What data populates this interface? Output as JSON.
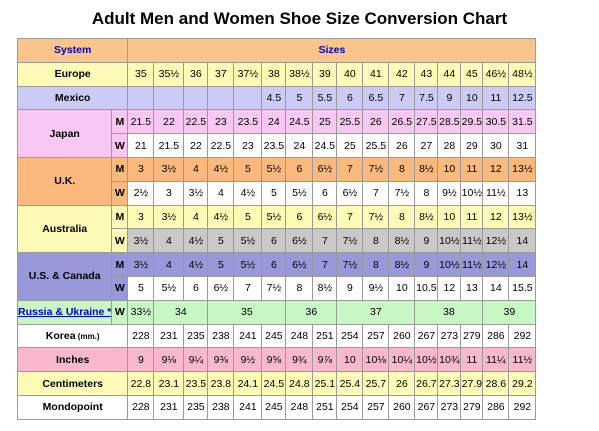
{
  "title": "Adult Men and Women Shoe Size Conversion Chart",
  "header": {
    "system": "System",
    "sizes": "Sizes"
  },
  "europe": {
    "label": "Europe",
    "values": [
      "35",
      "35½",
      "36",
      "37",
      "37½",
      "38",
      "38½",
      "39",
      "40",
      "41",
      "42",
      "43",
      "44",
      "45",
      "46½",
      "48½"
    ]
  },
  "mexico": {
    "label": "Mexico",
    "values": [
      "4.5",
      "5",
      "5.5",
      "6",
      "6.5",
      "7",
      "7.5",
      "9",
      "10",
      "11",
      "12.5"
    ]
  },
  "japan": {
    "label": "Japan",
    "m": {
      "tag": "M",
      "values": [
        "21.5",
        "22",
        "22.5",
        "23",
        "23.5",
        "24",
        "24.5",
        "25",
        "25.5",
        "26",
        "26.5",
        "27.5",
        "28.5",
        "29.5",
        "30.5",
        "31.5"
      ]
    },
    "w": {
      "tag": "W",
      "values": [
        "21",
        "21.5",
        "22",
        "22.5",
        "23",
        "23.5",
        "24",
        "24.5",
        "25",
        "25.5",
        "26",
        "27",
        "28",
        "29",
        "30",
        "31"
      ]
    }
  },
  "uk": {
    "label": "U.K.",
    "m": {
      "tag": "M",
      "values": [
        "3",
        "3½",
        "4",
        "4½",
        "5",
        "5½",
        "6",
        "6½",
        "7",
        "7½",
        "8",
        "8½",
        "10",
        "11",
        "12",
        "13½"
      ]
    },
    "w": {
      "tag": "W",
      "values": [
        "2½",
        "3",
        "3½",
        "4",
        "4½",
        "5",
        "5½",
        "6",
        "6½",
        "7",
        "7½",
        "8",
        "9½",
        "10½",
        "11½",
        "13"
      ]
    }
  },
  "australia": {
    "label": "Australia",
    "m": {
      "tag": "M",
      "values": [
        "3",
        "3½",
        "4",
        "4½",
        "5",
        "5½",
        "6",
        "6½",
        "7",
        "7½",
        "8",
        "8½",
        "10",
        "11",
        "12",
        "13½"
      ]
    },
    "w": {
      "tag": "W",
      "values": [
        "3½",
        "4",
        "4½",
        "5",
        "5½",
        "6",
        "6½",
        "7",
        "7½",
        "8",
        "8½",
        "9",
        "10½",
        "11½",
        "12½",
        "14"
      ]
    }
  },
  "us": {
    "label": "U.S. & Canada",
    "m": {
      "tag": "M",
      "values": [
        "3½",
        "4",
        "4½",
        "5",
        "5½",
        "6",
        "6½",
        "7",
        "7½",
        "8",
        "8½",
        "9",
        "10½",
        "11½",
        "12½",
        "14"
      ]
    },
    "w": {
      "tag": "W",
      "values": [
        "5",
        "5½",
        "6",
        "6½",
        "7",
        "7½",
        "8",
        "8½",
        "9",
        "9½",
        "10",
        "10.5",
        "12",
        "13",
        "14",
        "15.5"
      ]
    }
  },
  "russia": {
    "label": "Russia & Ukraine",
    "mark": "*",
    "tag": "W",
    "values": [
      "33½",
      "34",
      "35",
      "36",
      "37",
      "38",
      "39"
    ]
  },
  "korea": {
    "label": "Korea",
    "unit": "(mm.)",
    "values": [
      "228",
      "231",
      "235",
      "238",
      "241",
      "245",
      "248",
      "251",
      "254",
      "257",
      "260",
      "267",
      "273",
      "279",
      "286",
      "292"
    ]
  },
  "inches": {
    "label": "Inches",
    "values": [
      "9",
      "9⅛",
      "9¼",
      "9⅜",
      "9½",
      "9⅝",
      "9¾",
      "9⅞",
      "10",
      "10⅛",
      "10¼",
      "10½",
      "10¾",
      "11",
      "11¼",
      "11½"
    ]
  },
  "centimeters": {
    "label": "Centimeters",
    "values": [
      "22.8",
      "23.1",
      "23.5",
      "23.8",
      "24.1",
      "24.5",
      "24.8",
      "25.1",
      "25.4",
      "25.7",
      "26",
      "26.7",
      "27.3",
      "27.9",
      "28.6",
      "29.2"
    ]
  },
  "mondopoint": {
    "label": "Mondopoint",
    "values": [
      "228",
      "231",
      "235",
      "238",
      "241",
      "245",
      "248",
      "251",
      "254",
      "257",
      "260",
      "267",
      "273",
      "279",
      "286",
      "292"
    ]
  },
  "colors": {
    "header": "#f9c58a",
    "europe": "#fdfbb6",
    "mexico": "#cbcbf5",
    "japan": "#f9c8f2",
    "uk": "#fbb97e",
    "australia": "#fdfbb6",
    "us": "#9999d9",
    "russia": "#c7f7c2",
    "inches": "#f9b8cd",
    "centimeters": "#fdfbb6",
    "alternate": "#c9c9c9"
  }
}
